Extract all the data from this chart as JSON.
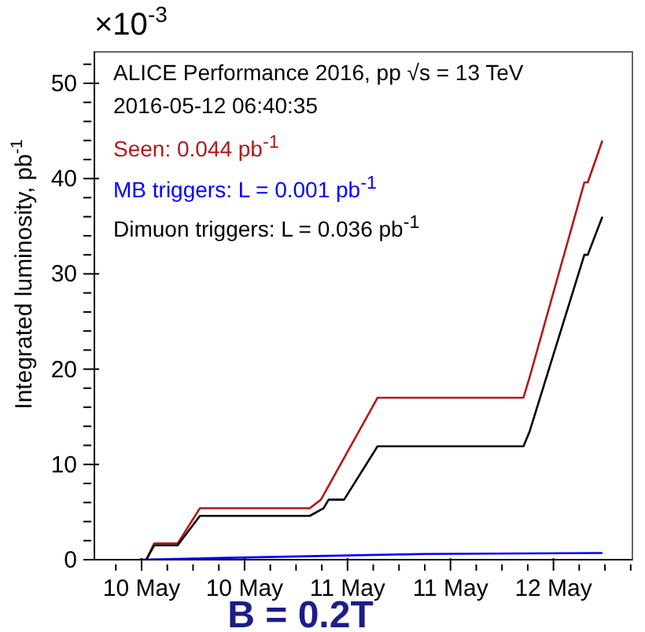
{
  "chart_data": {
    "type": "line",
    "title": "B = 0.2T",
    "ylabel": "Integrated luminosity, pb$^{-1}$",
    "annotations": [
      "×10$^{-3}$",
      "ALICE Performance 2016, pp √s = 13 TeV",
      "2016-05-12 06:40:35"
    ],
    "legend": "top left",
    "xlim": [
      "2016-05-09T18:30",
      "2016-05-12T09:12"
    ],
    "xticks": [
      {
        "value": "2016-05-09T21:00",
        "label": null
      },
      {
        "value": "2016-05-10T00:00",
        "label": "10 May"
      },
      {
        "value": "2016-05-10T03:00",
        "label": null
      },
      {
        "value": "2016-05-10T06:00",
        "label": null
      },
      {
        "value": "2016-05-10T09:00",
        "label": null
      },
      {
        "value": "2016-05-10T12:00",
        "label": "10 May"
      },
      {
        "value": "2016-05-10T15:00",
        "label": null
      },
      {
        "value": "2016-05-10T18:00",
        "label": null
      },
      {
        "value": "2016-05-10T21:00",
        "label": null
      },
      {
        "value": "2016-05-11T00:00",
        "label": "11 May"
      },
      {
        "value": "2016-05-11T03:00",
        "label": null
      },
      {
        "value": "2016-05-11T06:00",
        "label": null
      },
      {
        "value": "2016-05-11T09:00",
        "label": null
      },
      {
        "value": "2016-05-11T12:00",
        "label": "11 May"
      },
      {
        "value": "2016-05-11T15:00",
        "label": null
      },
      {
        "value": "2016-05-11T18:00",
        "label": null
      },
      {
        "value": "2016-05-11T21:00",
        "label": null
      },
      {
        "value": "2016-05-12T00:00",
        "label": "12 May"
      },
      {
        "value": "2016-05-12T03:00",
        "label": null
      },
      {
        "value": "2016-05-12T06:00",
        "label": null
      },
      {
        "value": "2016-05-12T09:00",
        "label": null
      }
    ],
    "ylim": [
      0,
      53.3
    ],
    "yticks": [
      0,
      {
        "value": 2,
        "label": null
      },
      {
        "value": 4,
        "label": null
      },
      {
        "value": 6,
        "label": null
      },
      {
        "value": 8,
        "label": null
      },
      10,
      {
        "value": 12,
        "label": null
      },
      {
        "value": 14,
        "label": null
      },
      {
        "value": 16,
        "label": null
      },
      {
        "value": 18,
        "label": null
      },
      20,
      {
        "value": 22,
        "label": null
      },
      {
        "value": 24,
        "label": null
      },
      {
        "value": 26,
        "label": null
      },
      {
        "value": 28,
        "label": null
      },
      30,
      {
        "value": 32,
        "label": null
      },
      {
        "value": 34,
        "label": null
      },
      {
        "value": 36,
        "label": null
      },
      {
        "value": 38,
        "label": null
      },
      40,
      {
        "value": 42,
        "label": null
      },
      {
        "value": 44,
        "label": null
      },
      {
        "value": 46,
        "label": null
      },
      {
        "value": 48,
        "label": null
      },
      50,
      {
        "value": 52,
        "label": null
      }
    ],
    "series": [
      {
        "name": "Seen: 0.044 pb$^{-1}$",
        "color": "#b41818",
        "x": [
          "2016-05-10T00:33",
          "2016-05-10T01:28",
          "2016-05-10T04:12",
          "2016-05-10T06:48",
          "2016-05-10T19:36",
          "2016-05-10T20:54",
          "2016-05-11T03:30",
          "2016-05-11T20:30",
          "2016-05-11T21:12",
          "2016-05-12T03:36",
          "2016-05-12T04:00",
          "2016-05-12T05:42"
        ],
        "values": [
          0,
          1.7,
          1.7,
          5.4,
          5.4,
          6.3,
          17.0,
          17.0,
          19.1,
          39.6,
          39.6,
          44.0
        ]
      },
      {
        "name": "MB triggers: L = 0.001 pb$^{-1}$",
        "color": "#0000ff",
        "x": [
          "2016-05-09T23:36",
          "2016-05-10T05:06",
          "2016-05-10T21:36",
          "2016-05-11T09:00",
          "2016-05-12T05:42"
        ],
        "values": [
          0,
          0.1,
          0.4,
          0.6,
          0.7
        ]
      },
      {
        "name": "Dimuon triggers: L = 0.036 pb$^{-1}$",
        "color": "#000000",
        "x": [
          "2016-05-10T00:33",
          "2016-05-10T01:28",
          "2016-05-10T04:12",
          "2016-05-10T06:48",
          "2016-05-10T19:36",
          "2016-05-10T21:12",
          "2016-05-10T21:48",
          "2016-05-10T23:36",
          "2016-05-11T03:30",
          "2016-05-11T20:30",
          "2016-05-11T21:12",
          "2016-05-12T03:36",
          "2016-05-12T04:00",
          "2016-05-12T05:42"
        ],
        "values": [
          0,
          1.5,
          1.5,
          4.6,
          4.6,
          5.4,
          6.3,
          6.3,
          11.9,
          11.9,
          13.4,
          32.0,
          32.0,
          36.0
        ]
      }
    ]
  }
}
